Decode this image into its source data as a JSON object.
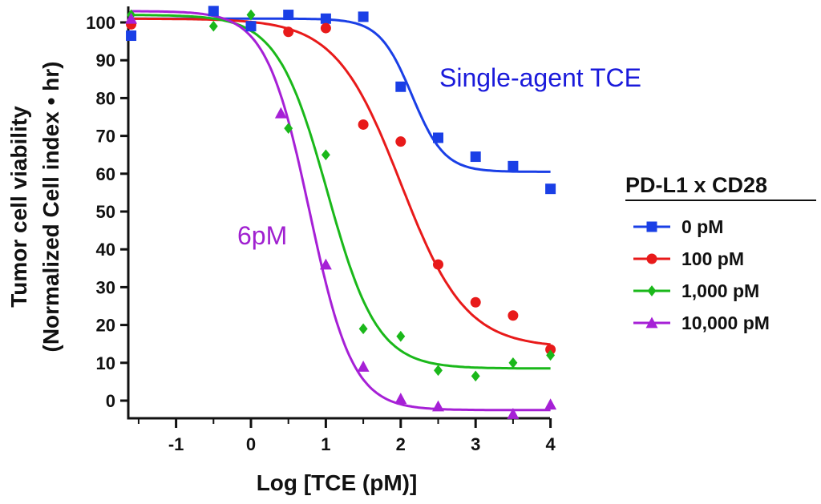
{
  "chart_data": {
    "type": "scatter",
    "xlabel": "Log [TCE (pM)]",
    "ylabel": "Tumor cell viability",
    "ylabel2": "(Normalized Cell index • hr)",
    "xlim": [
      -1.6,
      4.0
    ],
    "ylim": [
      -3,
      105
    ],
    "x_ticks": [
      -1,
      0,
      1,
      2,
      3,
      4
    ],
    "x_tick_labels": [
      "-1",
      "0",
      "1",
      "2",
      "3",
      "4"
    ],
    "y_ticks": [
      0,
      10,
      20,
      30,
      40,
      50,
      60,
      70,
      80,
      90,
      100
    ],
    "y_tick_labels": [
      "0",
      "10",
      "20",
      "30",
      "40",
      "50",
      "60",
      "70",
      "80",
      "90",
      "100"
    ],
    "grid": false,
    "legend": {
      "title": "PD-L1 x CD28",
      "position": "right"
    },
    "annotations": [
      {
        "text": "Single-agent TCE",
        "color": "#1a1adb"
      },
      {
        "text": "6pM",
        "color": "#a020d0"
      }
    ],
    "series": [
      {
        "name": "0 pM",
        "color": "#1a3fe6",
        "marker": "square",
        "x": [
          -1.6,
          -0.5,
          0,
          0.5,
          1,
          1.5,
          2,
          2.5,
          3,
          3.5,
          4
        ],
        "y": [
          96.5,
          103,
          99,
          102,
          101,
          101.5,
          83,
          69.5,
          64.5,
          62,
          56
        ],
        "fit": {
          "top": 101,
          "bottom": 60.5,
          "log_ec50": 2.15,
          "hill": 2.0
        }
      },
      {
        "name": "100 pM",
        "color": "#e81a1a",
        "marker": "circle",
        "x": [
          -1.6,
          0.5,
          1,
          1.5,
          2,
          2.5,
          3,
          3.5,
          4
        ],
        "y": [
          99.5,
          97.5,
          98.5,
          73,
          68.5,
          36,
          26,
          22.5,
          13.5
        ],
        "fit": {
          "top": 101,
          "bottom": 14,
          "log_ec50": 2.0,
          "hill": 1.0
        }
      },
      {
        "name": "1,000 pM",
        "color": "#1ab81a",
        "marker": "diamond",
        "x": [
          -1.6,
          -0.5,
          0,
          0.5,
          1,
          1.5,
          2,
          2.5,
          3,
          3.5,
          4
        ],
        "y": [
          102,
          99,
          102,
          72,
          65,
          19,
          17,
          8,
          6.5,
          10,
          12
        ],
        "fit": {
          "top": 102,
          "bottom": 8.5,
          "log_ec50": 1.02,
          "hill": 1.3
        }
      },
      {
        "name": "10,000 pM",
        "color": "#a620d6",
        "marker": "triangle",
        "x": [
          -1.6,
          0.4,
          1,
          1.5,
          2,
          2.5,
          3.5,
          4
        ],
        "y": [
          101,
          76,
          36,
          9,
          0.5,
          -1.5,
          -3.5,
          -1
        ],
        "fit": {
          "top": 103,
          "bottom": -2.5,
          "log_ec50": 0.78,
          "hill": 1.5
        }
      }
    ]
  }
}
